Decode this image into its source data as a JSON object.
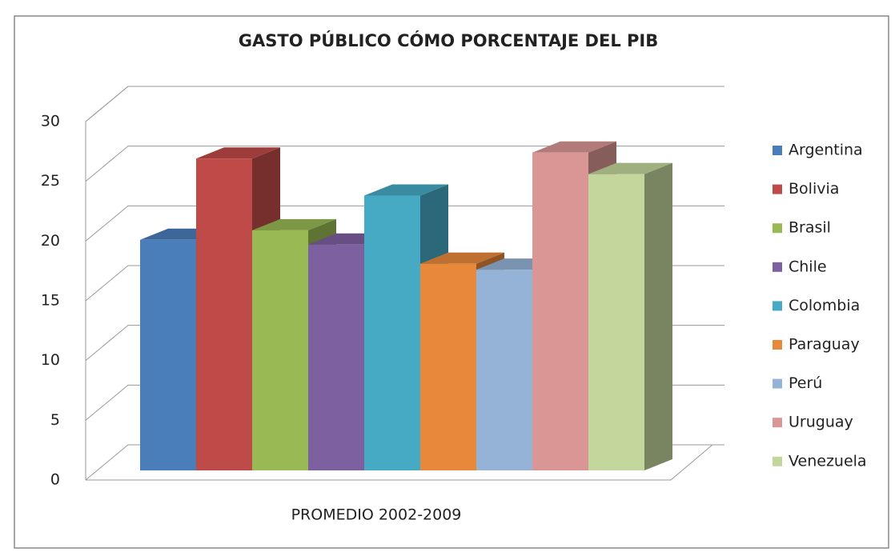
{
  "chart_data": {
    "type": "bar3d",
    "title": "GASTO PÚBLICO CÓMO PORCENTAJE DEL PIB",
    "categories": [
      "PROMEDIO 2002-2009"
    ],
    "series": [
      {
        "name": "Argentina",
        "color": "#4a7ebb",
        "values": [
          19.3
        ]
      },
      {
        "name": "Bolivia",
        "color": "#be4b48",
        "values": [
          26.1
        ]
      },
      {
        "name": "Brasil",
        "color": "#98b954",
        "values": [
          20.1
        ]
      },
      {
        "name": "Chile",
        "color": "#7d60a0",
        "values": [
          18.9
        ]
      },
      {
        "name": "Colombia",
        "color": "#46aac5",
        "values": [
          23.0
        ]
      },
      {
        "name": "Paraguay",
        "color": "#e8883a",
        "values": [
          17.3
        ]
      },
      {
        "name": "Perú",
        "color": "#95b3d7",
        "values": [
          16.8
        ]
      },
      {
        "name": "Uruguay",
        "color": "#d99694",
        "values": [
          26.6
        ]
      },
      {
        "name": "Venezuela",
        "color": "#c3d69b",
        "values": [
          24.8
        ]
      }
    ],
    "ylim": [
      0,
      30
    ],
    "yticks": [
      0,
      5,
      10,
      15,
      20,
      25,
      30
    ],
    "grid": true,
    "legend": "right"
  }
}
